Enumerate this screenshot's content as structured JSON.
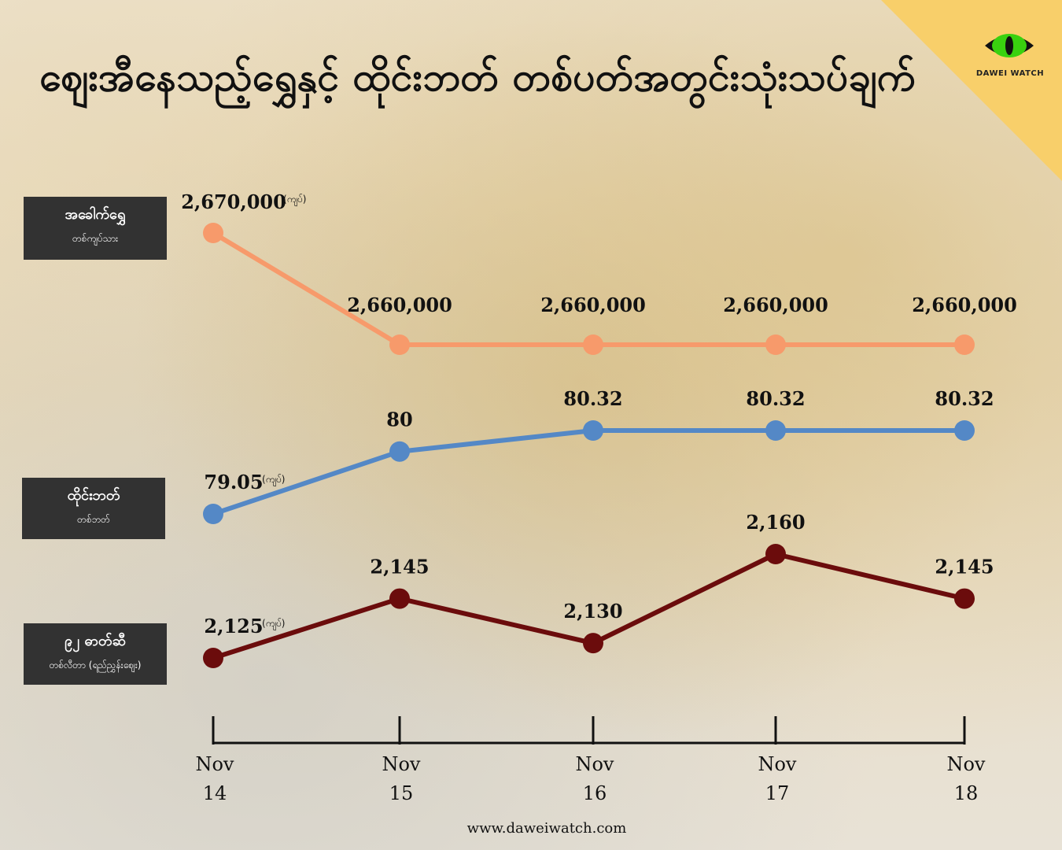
{
  "title": "ဈေးအီနေသည့်ရွှေနှင့် ထိုင်းဘတ် တစ်ပတ်အတွင်းသုံးသပ်ချက်",
  "brand": {
    "name": "DAWEI WATCH",
    "logo": "cat-eye-icon"
  },
  "footer_url": "www.daweiwatch.com",
  "colors": {
    "gold": "#f79a6b",
    "baht": "#5488c6",
    "fuel": "#6b0c0c",
    "label_bg": "#323232",
    "corner": "#f8cf6a"
  },
  "chart_data": {
    "type": "line",
    "categories": [
      "Nov 14",
      "Nov 15",
      "Nov 16",
      "Nov 17",
      "Nov 18"
    ],
    "tick_labels": [
      [
        "Nov",
        "14"
      ],
      [
        "Nov",
        "15"
      ],
      [
        "Nov",
        "16"
      ],
      [
        "Nov",
        "17"
      ],
      [
        "Nov",
        "18"
      ]
    ],
    "unit_note": "(ကျပ်)",
    "series": [
      {
        "key": "gold",
        "name": "အခေါက်ရွှေ",
        "subname": "တစ်ကျပ်သား",
        "color": "#f79a6b",
        "values": [
          2670000,
          2660000,
          2660000,
          2660000,
          2660000
        ],
        "labels": [
          "2,670,000",
          "2,660,000",
          "2,660,000",
          "2,660,000",
          "2,660,000"
        ]
      },
      {
        "key": "baht",
        "name": "ထိုင်းဘတ်",
        "subname": "တစ်ဘတ်",
        "color": "#5488c6",
        "values": [
          79.05,
          80,
          80.32,
          80.32,
          80.32
        ],
        "labels": [
          "79.05",
          "80",
          "80.32",
          "80.32",
          "80.32"
        ]
      },
      {
        "key": "fuel",
        "name": "၉၂ ဓာတ်ဆီ",
        "subname": "တစ်လီတာ (ရည်ညွှန်းဈေး)",
        "color": "#6b0c0c",
        "values": [
          2125,
          2145,
          2130,
          2160,
          2145
        ],
        "labels": [
          "2,125",
          "2,145",
          "2,130",
          "2,160",
          "2,145"
        ]
      }
    ]
  }
}
